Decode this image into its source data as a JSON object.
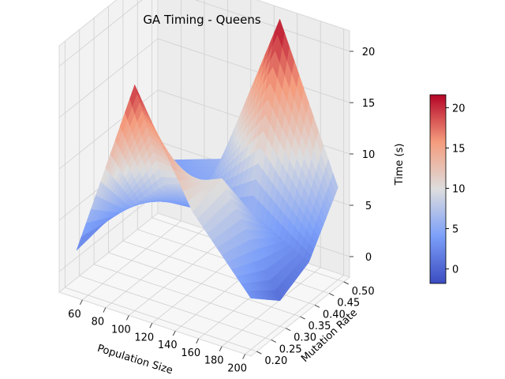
{
  "chart_data": {
    "type": "surface3d",
    "title": "GA Timing - Queens",
    "xlabel": "Population Size",
    "ylabel": "Mutation Rate",
    "zlabel": "Time (s)",
    "colormap": "coolwarm",
    "x": [
      50,
      100,
      150,
      200
    ],
    "y": [
      0.2,
      0.3,
      0.4,
      0.5
    ],
    "z": [
      [
        2.0,
        2.5,
        3.0,
        4.0
      ],
      [
        20.0,
        8.0,
        3.5,
        6.0
      ],
      [
        9.5,
        10.5,
        5.0,
        21.5
      ],
      [
        3.0,
        0.5,
        2.0,
        7.0
      ]
    ],
    "xlim": [
      40,
      205
    ],
    "ylim": [
      0.18,
      0.52
    ],
    "zlim": [
      -2,
      22
    ],
    "x_ticks": [
      60,
      80,
      100,
      120,
      140,
      160,
      180,
      200
    ],
    "y_ticks": [
      0.2,
      0.25,
      0.3,
      0.35,
      0.4,
      0.45,
      0.5
    ],
    "y_tick_labels": [
      "0.20",
      "0.25",
      "0.30",
      "0.35",
      "0.40",
      "0.45",
      "0.50"
    ],
    "z_ticks": [
      0,
      5,
      10,
      15,
      20
    ],
    "colorbar": {
      "min": -1.8,
      "max": 21.6,
      "ticks": [
        0,
        5,
        10,
        15,
        20
      ]
    }
  }
}
